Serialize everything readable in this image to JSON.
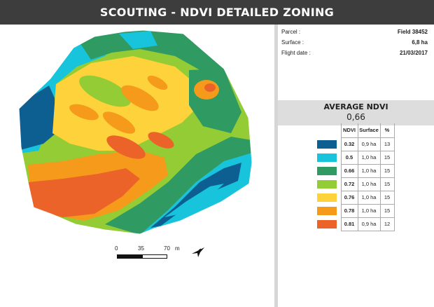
{
  "header": {
    "title": "SCOUTING - NDVI DETAILED ZONING"
  },
  "info": {
    "parcel_label": "Parcel :",
    "parcel_value": "Field 38452",
    "surface_label": "Surface :",
    "surface_value": "6,8 ha",
    "flight_label": "Flight date :",
    "flight_value": "21/03/2017"
  },
  "average": {
    "title": "AVERAGE NDVI",
    "value": "0,66"
  },
  "legend": {
    "headers": {
      "ndvi": "NDVI",
      "surface": "Surface",
      "percent": "%"
    },
    "rows": [
      {
        "color": "#0d5f91",
        "ndvi": "0.32",
        "surface": "0,9 ha",
        "percent": "13"
      },
      {
        "color": "#18c3dc",
        "ndvi": "0.5",
        "surface": "1,0 ha",
        "percent": "15"
      },
      {
        "color": "#2f9a62",
        "ndvi": "0.66",
        "surface": "1,0 ha",
        "percent": "15"
      },
      {
        "color": "#93cc34",
        "ndvi": "0.72",
        "surface": "1,0 ha",
        "percent": "15"
      },
      {
        "color": "#fdd23a",
        "ndvi": "0.76",
        "surface": "1,0 ha",
        "percent": "15"
      },
      {
        "color": "#f59a1a",
        "ndvi": "0.78",
        "surface": "1,0 ha",
        "percent": "15"
      },
      {
        "color": "#ec632a",
        "ndvi": "0.81",
        "surface": "0,9 ha",
        "percent": "12"
      }
    ]
  },
  "scale": {
    "tick_0": "0",
    "tick_1": "35",
    "tick_2": "70",
    "unit": "m"
  },
  "icons": {
    "north": "north-arrow-icon"
  }
}
